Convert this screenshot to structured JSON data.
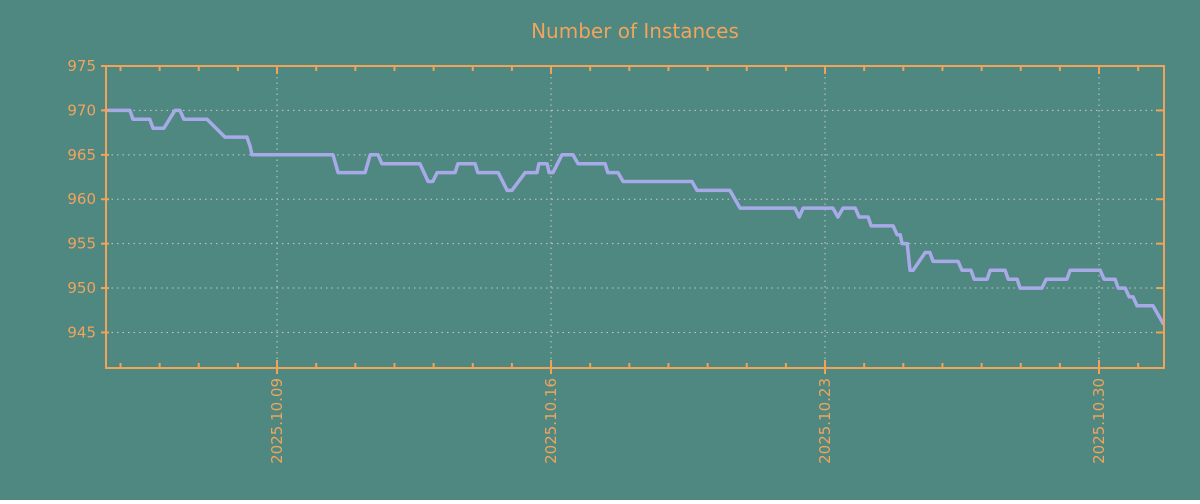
{
  "title": "Number of Instances",
  "colors": {
    "background": "#4e8881",
    "axis": "#f2a35a",
    "text": "#f0a45c",
    "grid": "#c9c9c9",
    "line": "#a8aae8"
  },
  "chart_data": {
    "type": "line",
    "title": "Number of Instances",
    "xlabel": "",
    "ylabel": "",
    "legend": false,
    "grid": true,
    "ylim": [
      941,
      975
    ],
    "yticks": [
      945,
      950,
      955,
      960,
      965,
      970,
      975
    ],
    "xlim_days": [
      0,
      27.03
    ],
    "x_major_ticks": [
      {
        "day": 4.37,
        "label": "2025.10.09"
      },
      {
        "day": 11.37,
        "label": "2025.10.16"
      },
      {
        "day": 18.37,
        "label": "2025.10.23"
      },
      {
        "day": 25.37,
        "label": "2025.10.30"
      }
    ],
    "x_minor_ticks": {
      "start_day": 0.37,
      "step_days": 1,
      "count": 27
    },
    "series": [
      {
        "name": "instances",
        "color": "#a8aae8",
        "points": [
          [
            0.0,
            970
          ],
          [
            0.61,
            970
          ],
          [
            0.69,
            969
          ],
          [
            1.12,
            969
          ],
          [
            1.2,
            968
          ],
          [
            1.48,
            968
          ],
          [
            1.76,
            970
          ],
          [
            1.89,
            970
          ],
          [
            1.99,
            969
          ],
          [
            2.58,
            969
          ],
          [
            3.04,
            967
          ],
          [
            3.6,
            967
          ],
          [
            3.68,
            966
          ],
          [
            3.73,
            965
          ],
          [
            5.8,
            965
          ],
          [
            5.93,
            963
          ],
          [
            6.62,
            963
          ],
          [
            6.75,
            965
          ],
          [
            6.95,
            965
          ],
          [
            7.05,
            964
          ],
          [
            8.02,
            964
          ],
          [
            8.23,
            962
          ],
          [
            8.35,
            962
          ],
          [
            8.46,
            963
          ],
          [
            8.92,
            963
          ],
          [
            8.99,
            964
          ],
          [
            9.43,
            964
          ],
          [
            9.5,
            963
          ],
          [
            10.02,
            963
          ],
          [
            10.25,
            961
          ],
          [
            10.37,
            961
          ],
          [
            10.71,
            963
          ],
          [
            11.01,
            963
          ],
          [
            11.06,
            964
          ],
          [
            11.27,
            964
          ],
          [
            11.32,
            963
          ],
          [
            11.42,
            963
          ],
          [
            11.65,
            965
          ],
          [
            11.93,
            965
          ],
          [
            12.06,
            964
          ],
          [
            12.75,
            964
          ],
          [
            12.82,
            963
          ],
          [
            13.08,
            963
          ],
          [
            13.21,
            962
          ],
          [
            14.97,
            962
          ],
          [
            15.1,
            961
          ],
          [
            15.94,
            961
          ],
          [
            16.2,
            959
          ],
          [
            17.6,
            959
          ],
          [
            17.71,
            958
          ],
          [
            17.81,
            959
          ],
          [
            18.57,
            959
          ],
          [
            18.7,
            958
          ],
          [
            18.83,
            959
          ],
          [
            19.14,
            959
          ],
          [
            19.24,
            958
          ],
          [
            19.47,
            958
          ],
          [
            19.55,
            957
          ],
          [
            20.11,
            957
          ],
          [
            20.21,
            956
          ],
          [
            20.29,
            956
          ],
          [
            20.34,
            955
          ],
          [
            20.47,
            955
          ],
          [
            20.54,
            952
          ],
          [
            20.62,
            952
          ],
          [
            20.93,
            954
          ],
          [
            21.05,
            954
          ],
          [
            21.13,
            953
          ],
          [
            21.77,
            953
          ],
          [
            21.87,
            952
          ],
          [
            22.1,
            952
          ],
          [
            22.18,
            951
          ],
          [
            22.51,
            951
          ],
          [
            22.59,
            952
          ],
          [
            22.97,
            952
          ],
          [
            23.05,
            951
          ],
          [
            23.28,
            951
          ],
          [
            23.35,
            950
          ],
          [
            23.91,
            950
          ],
          [
            24.02,
            951
          ],
          [
            24.55,
            951
          ],
          [
            24.63,
            952
          ],
          [
            25.4,
            952
          ],
          [
            25.5,
            951
          ],
          [
            25.78,
            951
          ],
          [
            25.86,
            950
          ],
          [
            26.04,
            950
          ],
          [
            26.14,
            949
          ],
          [
            26.24,
            949
          ],
          [
            26.34,
            948
          ],
          [
            26.75,
            948
          ],
          [
            27.01,
            946
          ]
        ]
      }
    ]
  }
}
